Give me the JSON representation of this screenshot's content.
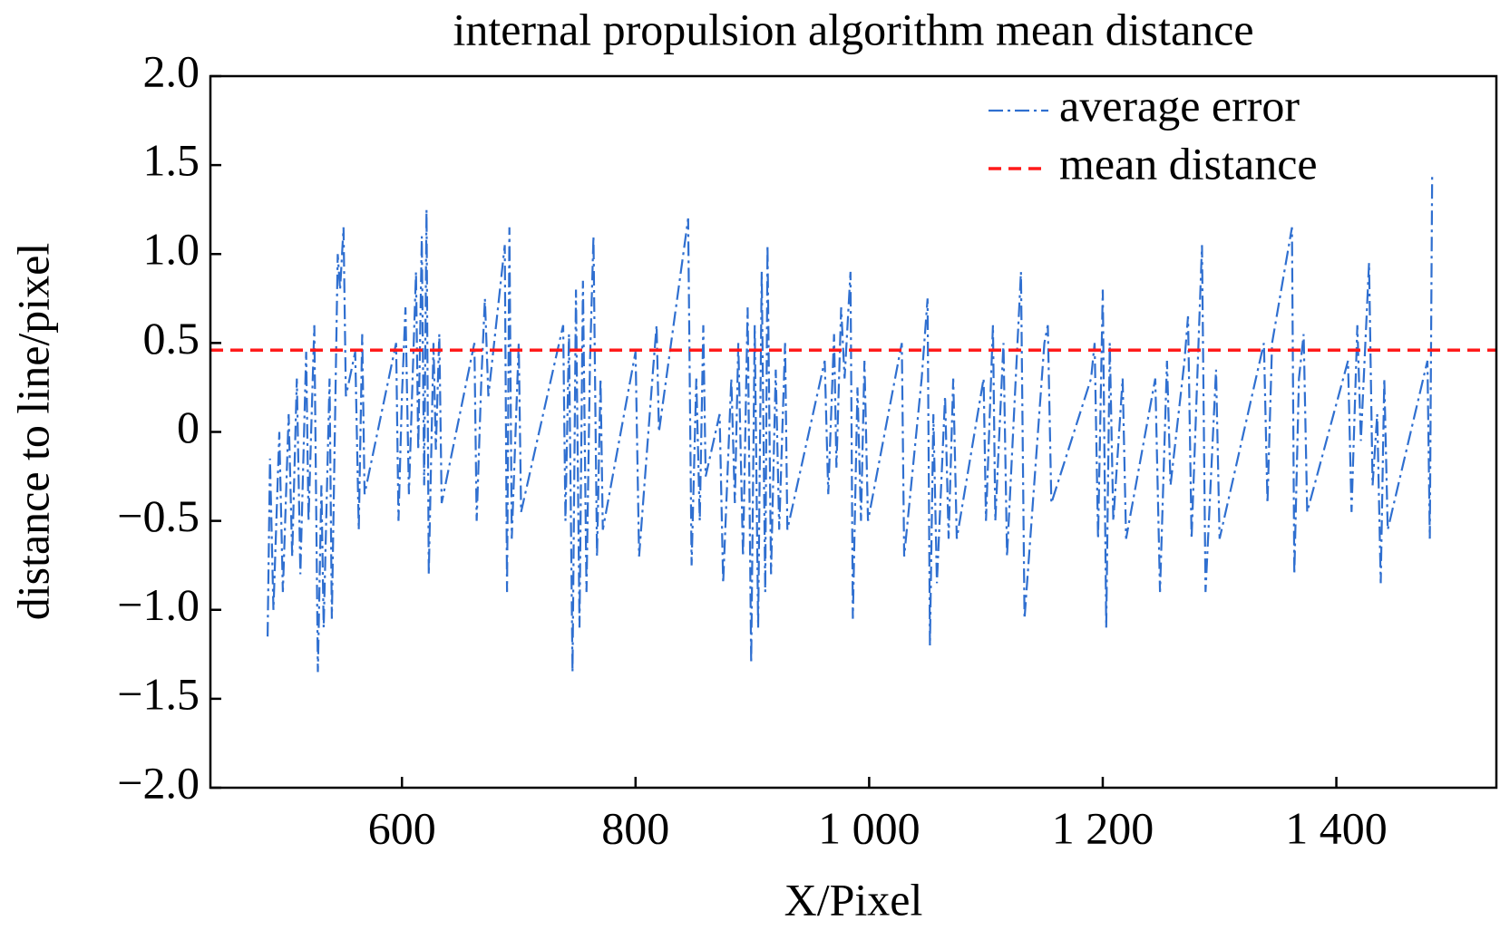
{
  "chart_data": {
    "type": "line",
    "title": "internal propulsion algorithm mean distance",
    "x_label": "X/Pixel",
    "y_label": "distance to line/pixel",
    "xlim": [
      436,
      1537
    ],
    "xticks": [
      600,
      800,
      {
        "value": 1000,
        "label": "1 000"
      },
      {
        "value": 1200,
        "label": "1 200"
      },
      {
        "value": 1400,
        "label": "1 400"
      }
    ],
    "ylim": [
      -2,
      2
    ],
    "yticks": [
      {
        "value": -2,
        "label": "−2.0"
      },
      {
        "value": -1.5,
        "label": "−1.5"
      },
      {
        "value": -1,
        "label": "−1.0"
      },
      {
        "value": -0.5,
        "label": "−0.5"
      },
      0,
      0.5,
      {
        "value": 1,
        "label": "1.0"
      },
      1.5,
      {
        "value": 2,
        "label": "2.0"
      }
    ],
    "grid": false,
    "legend": "upper right",
    "series": [
      {
        "name": "average error",
        "color": "#2f6fd0",
        "style": "dashdot",
        "x": [
          485,
          487,
          490,
          495,
          498,
          503,
          506,
          510,
          513,
          518,
          520,
          525,
          528,
          531,
          533,
          538,
          540,
          545,
          547,
          550,
          552,
          560,
          563,
          566,
          568,
          595,
          597,
          600,
          603,
          606,
          612,
          614,
          617,
          619,
          621,
          623,
          627,
          629,
          632,
          634,
          662,
          664,
          668,
          671,
          674,
          688,
          690,
          692,
          694,
          700,
          702,
          738,
          740,
          743,
          746,
          749,
          752,
          755,
          758,
          761,
          764,
          767,
          770,
          772,
          800,
          803,
          815,
          818,
          820,
          845,
          848,
          852,
          855,
          858,
          860,
          872,
          875,
          882,
          885,
          888,
          892,
          896,
          899,
          902,
          905,
          908,
          911,
          913,
          916,
          920,
          923,
          928,
          930,
          962,
          965,
          970,
          972,
          976,
          979,
          984,
          986,
          990,
          993,
          996,
          999,
          1028,
          1030,
          1045,
          1050,
          1052,
          1055,
          1058,
          1065,
          1068,
          1072,
          1075,
          1098,
          1100,
          1106,
          1108,
          1115,
          1118,
          1130,
          1133,
          1150,
          1153,
          1156,
          1190,
          1193,
          1196,
          1200,
          1203,
          1206,
          1209,
          1217,
          1220,
          1245,
          1249,
          1255,
          1258,
          1270,
          1273,
          1276,
          1285,
          1288,
          1297,
          1300,
          1338,
          1341,
          1345,
          1362,
          1364,
          1368,
          1372,
          1375,
          1410,
          1413,
          1418,
          1421,
          1428,
          1431,
          1435,
          1438,
          1441,
          1444,
          1478,
          1480,
          1482
        ],
        "values": [
          -1.15,
          -0.15,
          -1.0,
          0.0,
          -0.9,
          0.1,
          -0.7,
          0.3,
          -0.8,
          0.45,
          -0.5,
          0.6,
          -1.35,
          -0.3,
          -1.1,
          0.3,
          -1.05,
          1.0,
          0.8,
          1.15,
          0.2,
          0.45,
          -0.55,
          0.55,
          -0.35,
          0.5,
          -0.5,
          0.2,
          0.7,
          -0.35,
          0.9,
          -0.1,
          1.1,
          -0.3,
          1.25,
          -0.8,
          0.5,
          -0.1,
          0.55,
          -0.4,
          0.5,
          -0.5,
          0.3,
          0.75,
          0.2,
          1.05,
          -0.9,
          1.15,
          -0.6,
          0.5,
          -0.45,
          0.6,
          -0.5,
          0.55,
          -1.35,
          0.8,
          -1.1,
          0.85,
          -0.9,
          0.4,
          1.1,
          -0.7,
          0.3,
          -0.55,
          0.45,
          -0.7,
          0.35,
          0.6,
          0.0,
          1.2,
          -0.75,
          0.3,
          -0.5,
          0.6,
          -0.25,
          0.1,
          -0.85,
          0.3,
          -0.4,
          0.5,
          -0.7,
          0.7,
          -1.3,
          0.6,
          -1.1,
          0.9,
          -0.9,
          1.05,
          -0.8,
          0.35,
          -0.55,
          0.5,
          -0.55,
          0.4,
          -0.35,
          0.55,
          -0.2,
          0.7,
          0.3,
          0.9,
          -1.05,
          0.25,
          -0.5,
          0.4,
          -0.5,
          0.5,
          -0.7,
          0.3,
          0.75,
          -1.2,
          0.1,
          -0.85,
          0.2,
          -0.6,
          0.3,
          -0.6,
          0.3,
          -0.5,
          0.6,
          -0.5,
          0.5,
          -0.7,
          0.9,
          -1.05,
          0.5,
          0.6,
          -0.4,
          0.3,
          0.5,
          -0.6,
          0.8,
          -1.1,
          0.5,
          -0.5,
          0.3,
          -0.6,
          0.3,
          -0.9,
          0.4,
          -0.3,
          0.4,
          0.65,
          -0.6,
          1.05,
          -0.9,
          0.35,
          -0.6,
          0.5,
          -0.4,
          0.5,
          1.15,
          -0.8,
          0.3,
          0.55,
          -0.45,
          0.4,
          -0.45,
          0.6,
          -0.05,
          0.95,
          -0.3,
          0.1,
          -0.85,
          0.3,
          -0.55,
          0.4,
          -0.6,
          1.45
        ]
      },
      {
        "name": "mean distance",
        "color": "#ff1a1a",
        "style": "dashed",
        "x": [
          436,
          1537
        ],
        "values": [
          0.46,
          0.46
        ]
      }
    ]
  }
}
